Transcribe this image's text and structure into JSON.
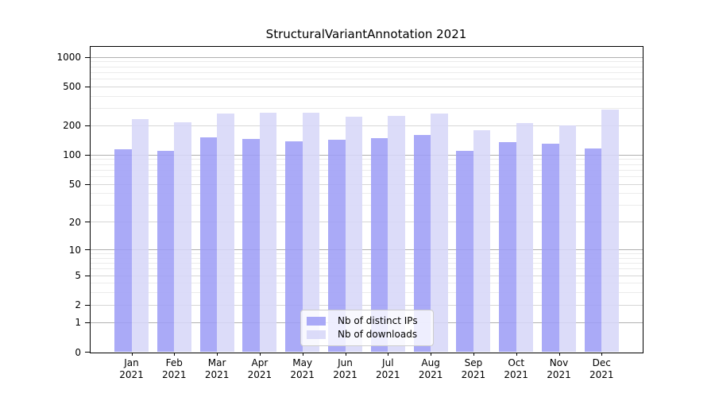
{
  "figure": {
    "title": "StructuralVariantAnnotation 2021"
  },
  "chart_data": {
    "type": "bar",
    "title": "StructuralVariantAnnotation 2021",
    "categories": [
      "Jan 2021",
      "Feb 2021",
      "Mar 2021",
      "Apr 2021",
      "May 2021",
      "Jun 2021",
      "Jul 2021",
      "Aug 2021",
      "Sep 2021",
      "Oct 2021",
      "Nov 2021",
      "Dec 2021"
    ],
    "month_labels": [
      "Jan",
      "Feb",
      "Mar",
      "Apr",
      "May",
      "Jun",
      "Jul",
      "Aug",
      "Sep",
      "Oct",
      "Nov",
      "Dec"
    ],
    "year_label": "2021",
    "series": [
      {
        "name": "Nb of distinct IPs",
        "color": "#9d9df6",
        "values": [
          115,
          110,
          152,
          146,
          139,
          144,
          149,
          161,
          110,
          135,
          131,
          117
        ]
      },
      {
        "name": "Nb of downloads",
        "color": "#d7d7f8",
        "values": [
          235,
          219,
          267,
          273,
          270,
          246,
          254,
          265,
          180,
          213,
          200,
          290
        ]
      }
    ],
    "xlabel": "",
    "ylabel": "",
    "yscale": "log(1+y)",
    "yticks": [
      0,
      1,
      2,
      5,
      10,
      20,
      50,
      100,
      200,
      500,
      1000
    ],
    "ytick_decades": [
      1,
      10,
      100,
      1000
    ],
    "ytick_minors": [
      3,
      4,
      6,
      7,
      8,
      9,
      30,
      40,
      60,
      70,
      80,
      90,
      300,
      400,
      600,
      700,
      800,
      900
    ],
    "ylim": [
      0,
      1300
    ],
    "grid": true,
    "legend_position": "lower center",
    "colors": {
      "grid_decade": "#b0b0b0",
      "grid_labeled": "#d6d6d6",
      "grid_minor": "#ebebeb",
      "axis": "#000000"
    }
  }
}
